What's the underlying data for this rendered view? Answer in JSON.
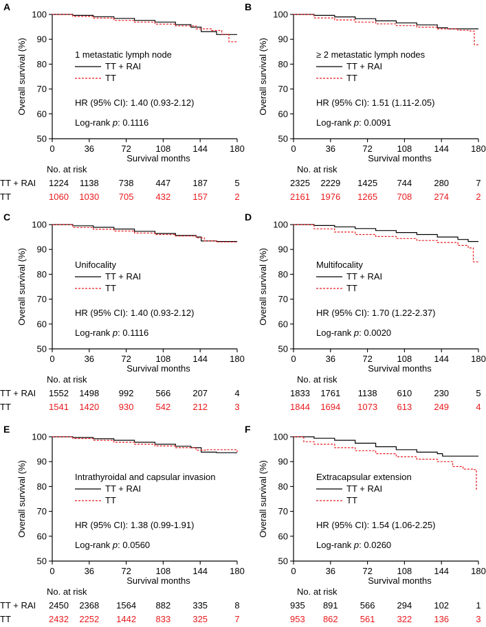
{
  "figure": {
    "risk_header": "No. at risk",
    "legend": [
      {
        "label": "TT + RAI",
        "color": "#000000"
      },
      {
        "label": "TT",
        "color": "#e8191c"
      }
    ],
    "hr_prefix": "HR (95% CI): ",
    "logrank_prefix": "Log-rank ",
    "logrank_p": "p",
    "logrank_colon": ": "
  },
  "chart_data": [
    {
      "type": "line",
      "letter": "A",
      "title": "1 metastatic lymph node",
      "xlabel": "Survival months",
      "ylabel": "Overall survival (%)",
      "xlim": [
        0,
        180
      ],
      "ylim": [
        50,
        100
      ],
      "xticks": [
        0,
        36,
        72,
        108,
        144,
        180
      ],
      "yticks": [
        50,
        60,
        70,
        80,
        90,
        100
      ],
      "hr": "1.40 (0.93-2.12)",
      "logrank": "0.1116",
      "series": [
        {
          "name": "TT + RAI",
          "color": "#000000",
          "x": [
            0,
            20,
            40,
            60,
            80,
            100,
            120,
            135,
            145,
            160,
            170,
            180
          ],
          "y": [
            100,
            99.6,
            99.1,
            98.4,
            97.6,
            96.9,
            95.9,
            94.9,
            93.1,
            91.9,
            91.9,
            91.9
          ]
        },
        {
          "name": "TT",
          "color": "#e8191c",
          "x": [
            0,
            20,
            40,
            60,
            80,
            100,
            120,
            140,
            155,
            165,
            172,
            180
          ],
          "y": [
            100,
            99.2,
            98.5,
            97.6,
            96.9,
            96.1,
            95.4,
            94.2,
            93.5,
            92.0,
            89.0,
            89.0
          ]
        }
      ],
      "risk": [
        {
          "name": "TT + RAI",
          "values": [
            "1224",
            "1138",
            "738",
            "447",
            "187",
            "5"
          ]
        },
        {
          "name": "TT",
          "values": [
            "1060",
            "1030",
            "705",
            "432",
            "157",
            "2"
          ]
        }
      ]
    },
    {
      "type": "line",
      "letter": "B",
      "title": "≥ 2 metastatic lymph nodes",
      "xlabel": "Survival months",
      "ylabel": "Overall survival (%)",
      "xlim": [
        0,
        180
      ],
      "ylim": [
        50,
        100
      ],
      "xticks": [
        0,
        36,
        72,
        108,
        144,
        180
      ],
      "yticks": [
        50,
        60,
        70,
        80,
        90,
        100
      ],
      "hr": "1.51 (1.11-2.05)",
      "logrank": "0.0091",
      "series": [
        {
          "name": "TT + RAI",
          "color": "#000000",
          "x": [
            0,
            20,
            40,
            60,
            80,
            100,
            120,
            140,
            150,
            165,
            180
          ],
          "y": [
            100,
            99.6,
            99.0,
            98.3,
            97.4,
            96.6,
            95.8,
            94.6,
            94.2,
            94.2,
            94.2
          ]
        },
        {
          "name": "TT",
          "color": "#e8191c",
          "x": [
            0,
            20,
            40,
            60,
            80,
            100,
            120,
            140,
            160,
            172,
            176,
            180
          ],
          "y": [
            100,
            98.6,
            97.8,
            96.9,
            96.2,
            95.5,
            94.9,
            94.2,
            93.6,
            93.3,
            87.8,
            87.8
          ]
        }
      ],
      "risk": [
        {
          "name": "TT + RAI",
          "values": [
            "2325",
            "2229",
            "1425",
            "744",
            "280",
            "7"
          ]
        },
        {
          "name": "TT",
          "values": [
            "2161",
            "1976",
            "1265",
            "708",
            "274",
            "2"
          ]
        }
      ]
    },
    {
      "type": "line",
      "letter": "C",
      "title": "Unifocality",
      "xlabel": "Survival months",
      "ylabel": "Overall survival (%)",
      "xlim": [
        0,
        180
      ],
      "ylim": [
        50,
        100
      ],
      "xticks": [
        0,
        36,
        72,
        108,
        144,
        180
      ],
      "yticks": [
        50,
        60,
        70,
        80,
        90,
        100
      ],
      "hr": "1.40 (0.93-2.12)",
      "logrank": "0.1116",
      "series": [
        {
          "name": "TT + RAI",
          "color": "#000000",
          "x": [
            0,
            20,
            40,
            60,
            80,
            100,
            120,
            140,
            145,
            160,
            180
          ],
          "y": [
            100,
            99.5,
            98.9,
            98.2,
            97.3,
            96.4,
            95.6,
            95.0,
            93.4,
            93.2,
            93.2
          ]
        },
        {
          "name": "TT",
          "color": "#e8191c",
          "x": [
            0,
            20,
            40,
            60,
            80,
            100,
            120,
            140,
            148,
            160,
            180
          ],
          "y": [
            100,
            98.8,
            98.1,
            97.4,
            96.6,
            96.0,
            95.4,
            94.7,
            93.4,
            93.0,
            92.8
          ]
        }
      ],
      "risk": [
        {
          "name": "TT + RAI",
          "values": [
            "1552",
            "1498",
            "992",
            "566",
            "207",
            "4"
          ]
        },
        {
          "name": "TT",
          "values": [
            "1541",
            "1420",
            "930",
            "542",
            "212",
            "3"
          ]
        }
      ]
    },
    {
      "type": "line",
      "letter": "D",
      "title": "Multifocality",
      "xlabel": "Survival months",
      "ylabel": "Overall survival (%)",
      "xlim": [
        0,
        180
      ],
      "ylim": [
        50,
        100
      ],
      "xticks": [
        0,
        36,
        72,
        108,
        144,
        180
      ],
      "yticks": [
        50,
        60,
        70,
        80,
        90,
        100
      ],
      "hr": "1.70 (1.22-2.37)",
      "logrank": "0.0020",
      "series": [
        {
          "name": "TT + RAI",
          "color": "#000000",
          "x": [
            0,
            20,
            40,
            60,
            80,
            100,
            120,
            140,
            160,
            170,
            180
          ],
          "y": [
            100,
            99.6,
            99.1,
            98.4,
            97.6,
            96.8,
            96.0,
            95.0,
            94.0,
            93.2,
            93.2
          ]
        },
        {
          "name": "TT",
          "color": "#e8191c",
          "x": [
            0,
            20,
            40,
            60,
            80,
            100,
            120,
            140,
            160,
            170,
            175,
            180
          ],
          "y": [
            100,
            98.3,
            97.0,
            96.0,
            95.2,
            94.4,
            93.6,
            92.8,
            91.6,
            90.6,
            85.0,
            85.0
          ]
        }
      ],
      "risk": [
        {
          "name": "TT + RAI",
          "values": [
            "1833",
            "1761",
            "1138",
            "610",
            "230",
            "5"
          ]
        },
        {
          "name": "TT",
          "values": [
            "1844",
            "1694",
            "1073",
            "613",
            "249",
            "4"
          ]
        }
      ]
    },
    {
      "type": "line",
      "letter": "E",
      "title": "Intrathyroidal and capsular invasion",
      "xlabel": "Survival months",
      "ylabel": "Overall survival (%)",
      "xlim": [
        0,
        180
      ],
      "ylim": [
        50,
        100
      ],
      "xticks": [
        0,
        36,
        72,
        108,
        144,
        180
      ],
      "yticks": [
        50,
        60,
        70,
        80,
        90,
        100
      ],
      "hr": "1.38 (0.99-1.91)",
      "logrank": "0.0560",
      "series": [
        {
          "name": "TT + RAI",
          "color": "#000000",
          "x": [
            0,
            20,
            40,
            60,
            80,
            100,
            120,
            135,
            145,
            160,
            180
          ],
          "y": [
            100,
            99.7,
            99.2,
            98.6,
            97.8,
            97.0,
            96.2,
            95.6,
            93.8,
            93.6,
            93.6
          ]
        },
        {
          "name": "TT",
          "color": "#e8191c",
          "x": [
            0,
            20,
            40,
            60,
            80,
            100,
            120,
            140,
            150,
            165,
            180
          ],
          "y": [
            100,
            99.3,
            98.6,
            97.8,
            97.0,
            96.3,
            95.6,
            94.6,
            94.8,
            94.8,
            93.9
          ]
        }
      ],
      "risk": [
        {
          "name": "TT + RAI",
          "values": [
            "2450",
            "2368",
            "1564",
            "882",
            "335",
            "8"
          ]
        },
        {
          "name": "TT",
          "values": [
            "2432",
            "2252",
            "1442",
            "833",
            "325",
            "7"
          ]
        }
      ]
    },
    {
      "type": "line",
      "letter": "F",
      "title": "Extracapsular extension",
      "xlabel": "Survival months",
      "ylabel": "Overall survival (%)",
      "xlim": [
        0,
        180
      ],
      "ylim": [
        50,
        100
      ],
      "xticks": [
        0,
        36,
        72,
        108,
        144,
        180
      ],
      "yticks": [
        50,
        60,
        70,
        80,
        90,
        100
      ],
      "hr": "1.54 (1.06-2.25)",
      "logrank": "0.0260",
      "series": [
        {
          "name": "TT + RAI",
          "color": "#000000",
          "x": [
            0,
            20,
            40,
            60,
            80,
            100,
            120,
            140,
            145,
            160,
            180
          ],
          "y": [
            100,
            99.4,
            98.6,
            97.4,
            96.0,
            94.8,
            93.8,
            93.2,
            92.2,
            92.2,
            92.2
          ]
        },
        {
          "name": "TT",
          "color": "#e8191c",
          "x": [
            0,
            10,
            20,
            40,
            60,
            80,
            100,
            120,
            140,
            155,
            165,
            175,
            178,
            180
          ],
          "y": [
            100,
            98.0,
            97.0,
            95.6,
            94.4,
            93.2,
            92.0,
            91.0,
            90.0,
            88.0,
            87.0,
            86.8,
            79.0,
            79.0
          ]
        }
      ],
      "risk": [
        {
          "name": "TT + RAI",
          "values": [
            "935",
            "891",
            "566",
            "294",
            "102",
            "1"
          ]
        },
        {
          "name": "TT",
          "values": [
            "953",
            "862",
            "561",
            "322",
            "136",
            "3"
          ]
        }
      ]
    }
  ]
}
